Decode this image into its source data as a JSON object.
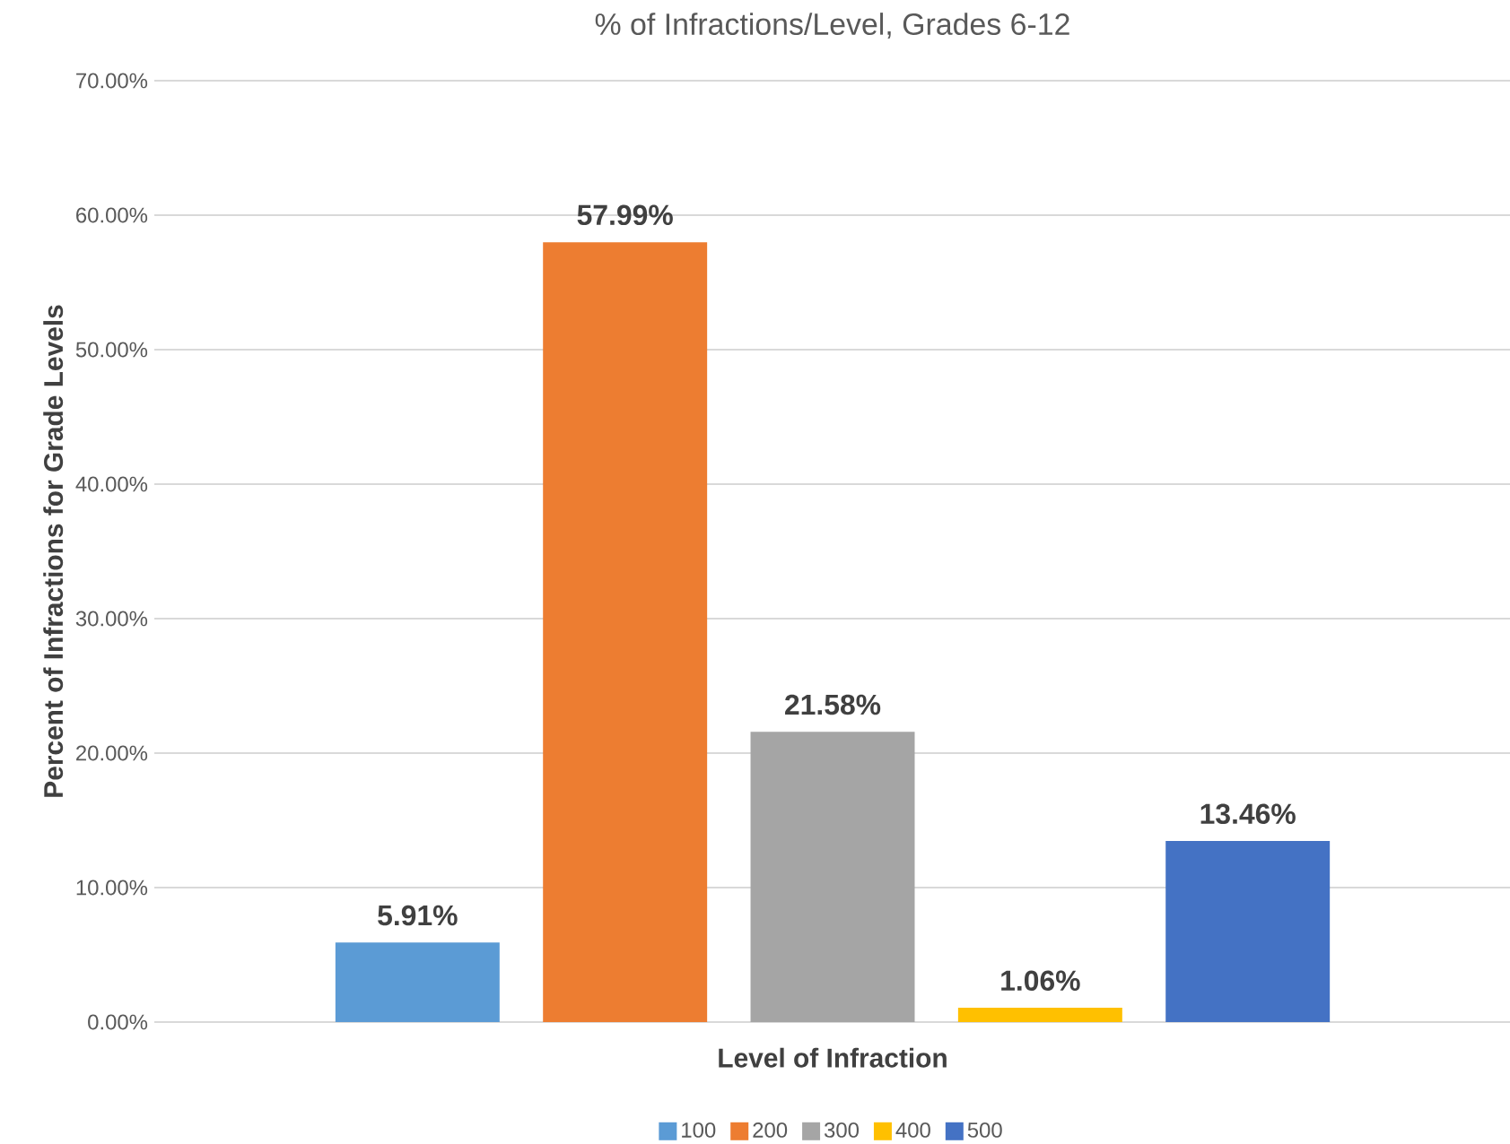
{
  "chart_data": {
    "type": "bar",
    "title": "% of Infractions/Level, Grades 6-12",
    "xlabel": "Level of Infraction",
    "ylabel": "Percent of Infractions for Grade Levels",
    "categories": [
      null
    ],
    "series": [
      {
        "name": "100",
        "color": "#5b9bd5",
        "values": [
          5.91
        ],
        "value_labels": [
          "5.91%"
        ]
      },
      {
        "name": "200",
        "color": "#ed7d31",
        "values": [
          57.99
        ],
        "value_labels": [
          "57.99%"
        ]
      },
      {
        "name": "300",
        "color": "#a5a5a5",
        "values": [
          21.58
        ],
        "value_labels": [
          "21.58%"
        ]
      },
      {
        "name": "400",
        "color": "#ffc000",
        "values": [
          1.06
        ],
        "value_labels": [
          "1.06%"
        ]
      },
      {
        "name": "500",
        "color": "#4472c4",
        "values": [
          13.46
        ],
        "value_labels": [
          "13.46%"
        ]
      }
    ],
    "ylim": [
      0,
      70
    ],
    "yticks": [
      {
        "value": 0,
        "label": "0.00%"
      },
      {
        "value": 10,
        "label": "10.00%"
      },
      {
        "value": 20,
        "label": "20.00%"
      },
      {
        "value": 30,
        "label": "30.00%"
      },
      {
        "value": 40,
        "label": "40.00%"
      },
      {
        "value": 50,
        "label": "50.00%"
      },
      {
        "value": 60,
        "label": "60.00%"
      },
      {
        "value": 70,
        "label": "70.00%"
      }
    ],
    "grid": "y",
    "legend": "bottom"
  }
}
